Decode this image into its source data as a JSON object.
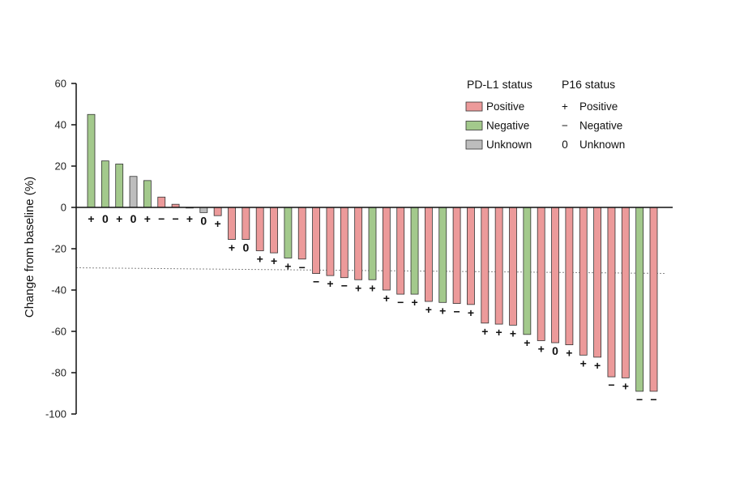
{
  "chart_data": {
    "type": "bar",
    "ylabel": "Change from baseline (%)",
    "ylim": [
      -100,
      60
    ],
    "yticks": [
      60,
      40,
      20,
      0,
      -20,
      -40,
      -60,
      -80,
      -100
    ],
    "reference_line": -30,
    "values": [
      45,
      22.5,
      21,
      15,
      13,
      5,
      1.5,
      0,
      -2.5,
      -4,
      -15.5,
      -15.5,
      -21,
      -22,
      -24.5,
      -25,
      -32,
      -33,
      -34,
      -35,
      -35,
      -40,
      -42,
      -42,
      -45.5,
      -46,
      -46.5,
      -47,
      -56,
      -56.5,
      -57,
      -61.5,
      -64.5,
      -65.5,
      -66.5,
      -71.5,
      -72.5,
      -82,
      -82.5,
      -89,
      -89
    ],
    "pdl1_status": [
      "Negative",
      "Negative",
      "Negative",
      "Unknown",
      "Negative",
      "Positive",
      "Positive",
      "Positive",
      "Unknown",
      "Positive",
      "Positive",
      "Positive",
      "Positive",
      "Positive",
      "Negative",
      "Positive",
      "Positive",
      "Positive",
      "Positive",
      "Positive",
      "Negative",
      "Positive",
      "Positive",
      "Negative",
      "Positive",
      "Negative",
      "Positive",
      "Positive",
      "Positive",
      "Positive",
      "Positive",
      "Negative",
      "Positive",
      "Positive",
      "Positive",
      "Positive",
      "Positive",
      "Positive",
      "Positive",
      "Negative",
      "Positive"
    ],
    "p16_labels": [
      "+",
      "0",
      "+",
      "0",
      "+",
      "−",
      "−",
      "+",
      "0",
      "+",
      "+",
      "0",
      "+",
      "+",
      "+",
      "−",
      "−",
      "+",
      "−",
      "+",
      "+",
      "+",
      "−",
      "+",
      "+",
      "+",
      "−",
      "+",
      "+",
      "+",
      "+",
      "+",
      "+",
      "0",
      "+",
      "+",
      "+",
      "−",
      "+",
      "−",
      "−"
    ],
    "legend": {
      "pdl1_title": "PD-L1 status",
      "pdl1_entries": [
        {
          "label": "Positive",
          "color": "#ec9a9a"
        },
        {
          "label": "Negative",
          "color": "#a3c98c"
        },
        {
          "label": "Unknown",
          "color": "#bdbdbd"
        }
      ],
      "p16_title": "P16 status",
      "p16_entries": [
        {
          "symbol": "+",
          "label": "Positive"
        },
        {
          "symbol": "−",
          "label": "Negative"
        },
        {
          "symbol": "0",
          "label": "Unknown"
        }
      ]
    },
    "colors": {
      "Positive": "#ec9a9a",
      "Negative": "#a3c98c",
      "Unknown": "#bdbdbd"
    }
  }
}
